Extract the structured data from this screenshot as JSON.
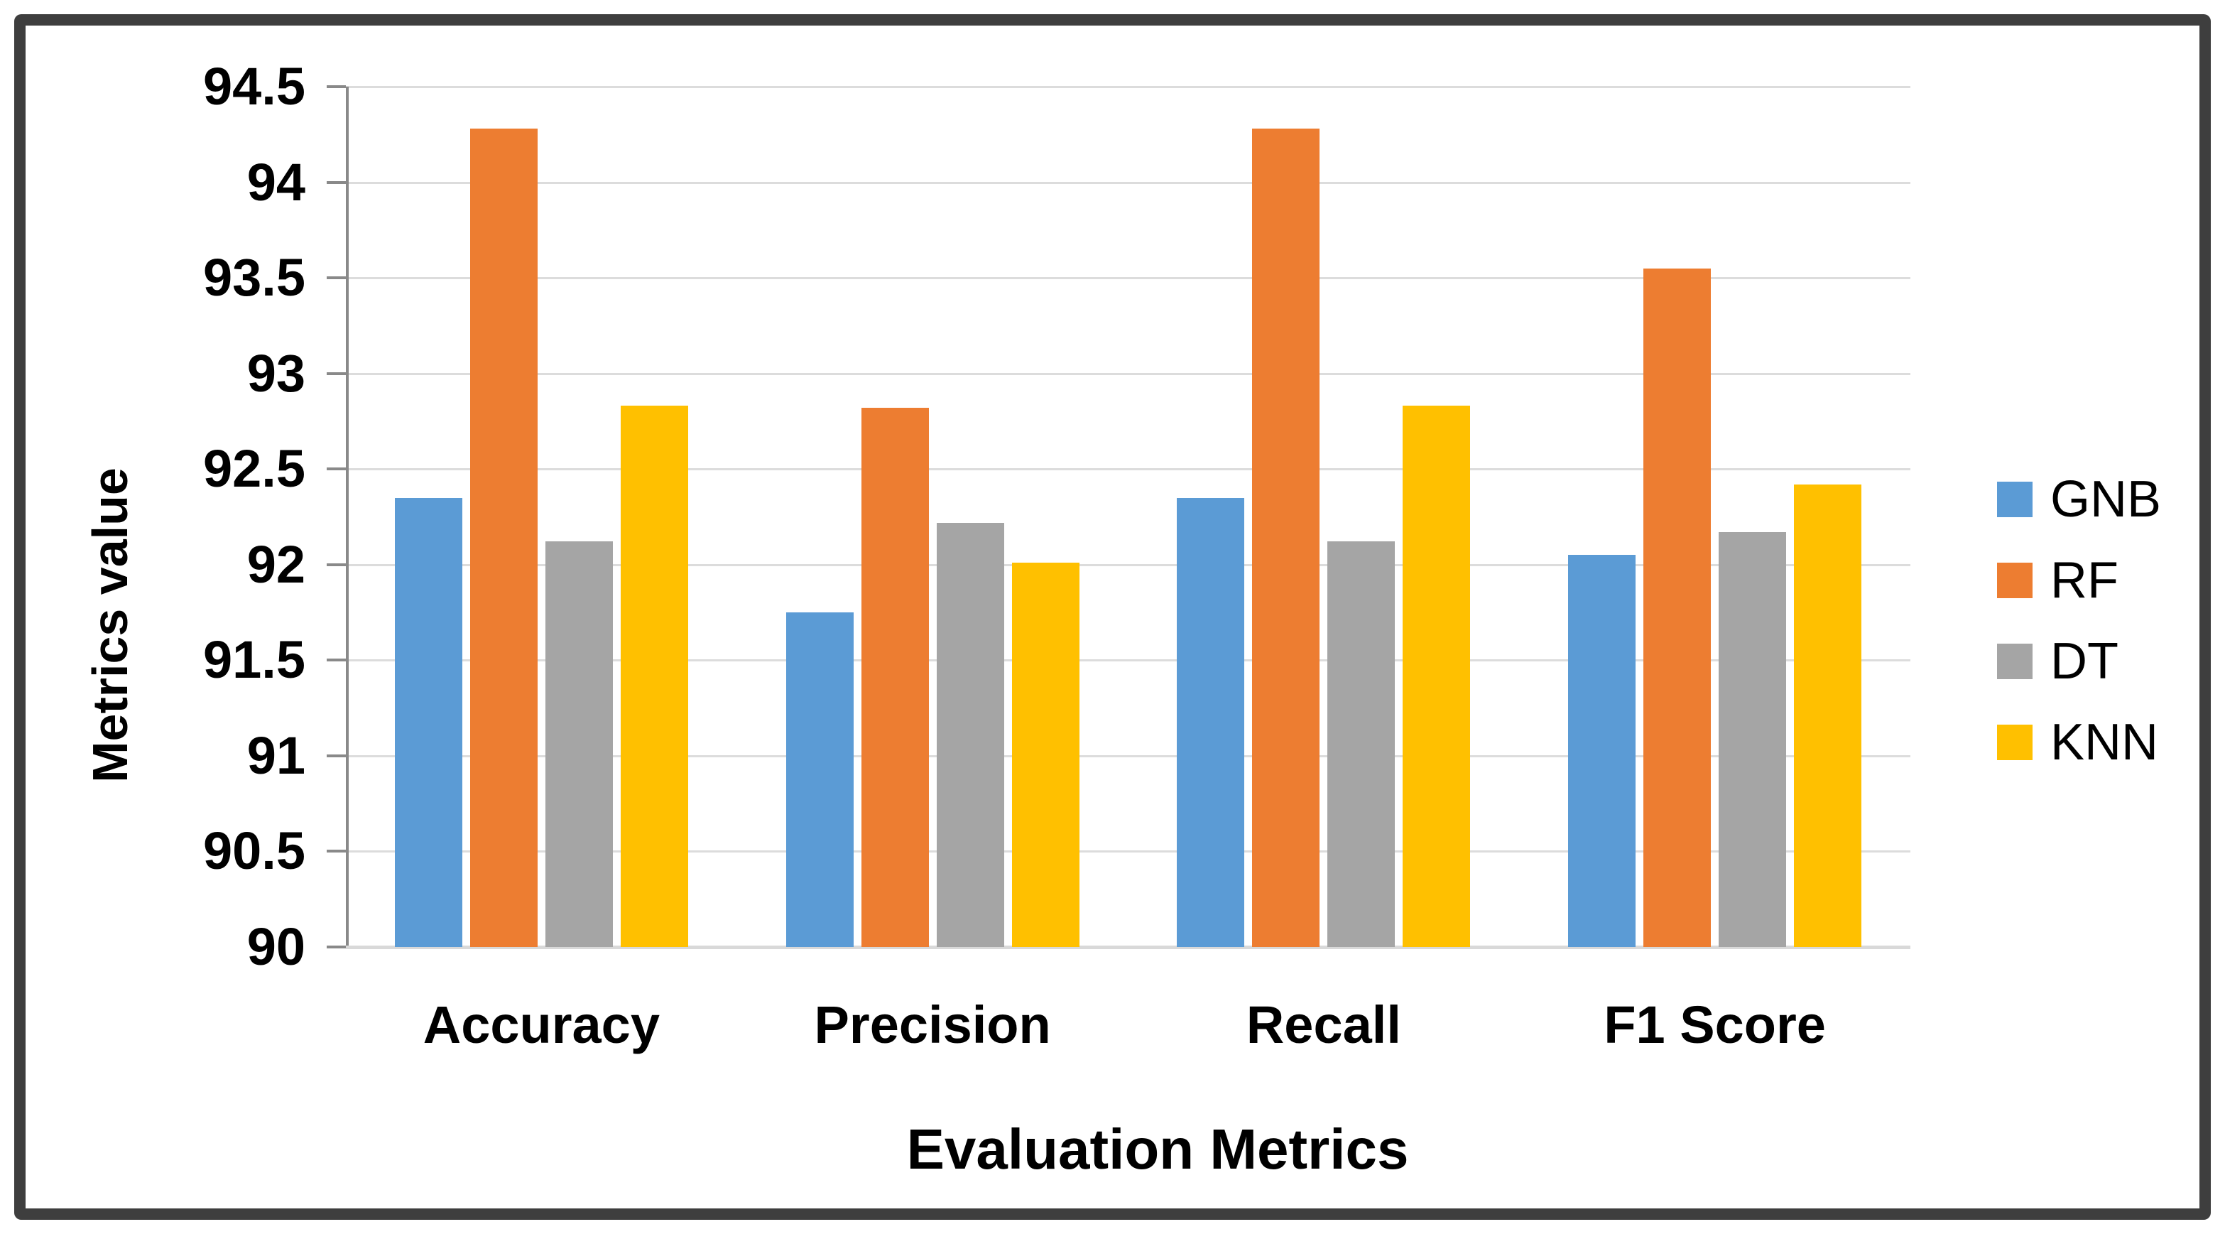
{
  "chart_data": {
    "type": "bar",
    "title": "",
    "xlabel": "Evaluation Metrics",
    "ylabel": "Metrics value",
    "categories": [
      "Accuracy",
      "Precision",
      "Recall",
      "F1 Score"
    ],
    "series": [
      {
        "name": "GNB",
        "color": "#5B9BD5",
        "values": [
          92.35,
          91.75,
          92.35,
          92.05
        ]
      },
      {
        "name": "RF",
        "color": "#ED7D31",
        "values": [
          94.28,
          92.82,
          94.28,
          93.55
        ]
      },
      {
        "name": "DT",
        "color": "#A5A5A5",
        "values": [
          92.12,
          92.22,
          92.12,
          92.17
        ]
      },
      {
        "name": "KNN",
        "color": "#FFC000",
        "values": [
          92.83,
          92.01,
          92.83,
          92.42
        ]
      }
    ],
    "y_axis": {
      "min": 90,
      "max": 94.5,
      "step": 0.5,
      "tick_labels": [
        "90",
        "90.5",
        "91",
        "91.5",
        "92",
        "92.5",
        "93",
        "93.5",
        "94",
        "94.5"
      ]
    },
    "grid": true,
    "legend_position": "right",
    "legend_entries": [
      "GNB",
      "RF",
      "DT",
      "KNN"
    ]
  },
  "colors": {
    "background": "#FFFFFF",
    "frame_border": "#3E3E3E",
    "gridline": "#DCDCDC",
    "x_axis_line": "#D9D9D9",
    "y_axis_line": "#898989",
    "tick_mark": "#898989",
    "text": "#000000"
  }
}
